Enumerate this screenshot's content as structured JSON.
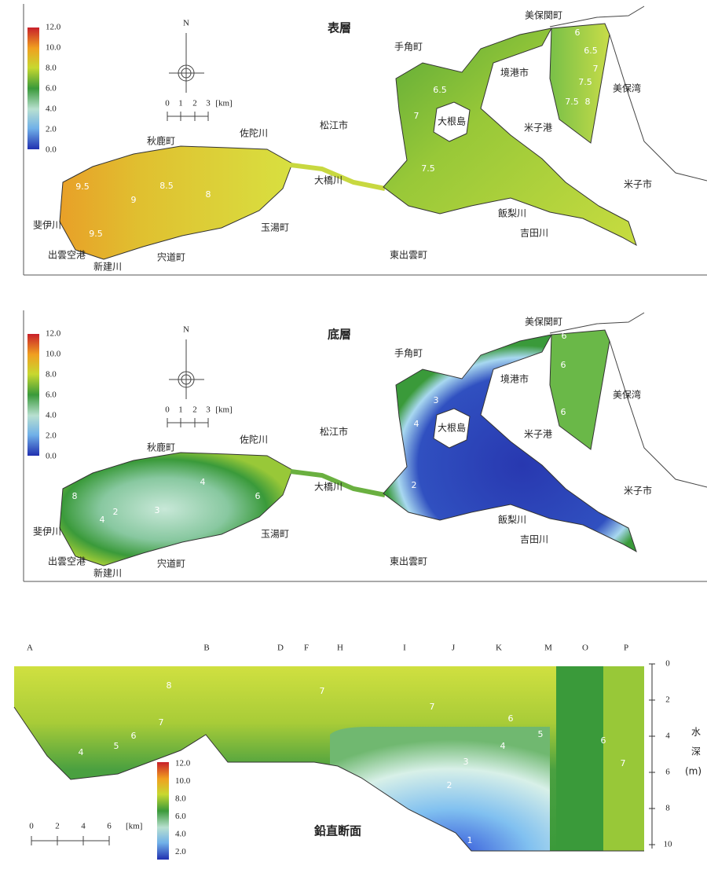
{
  "panels": [
    {
      "title": "表層",
      "colorbar_ticks": [
        "12.0",
        "10.0",
        "8.0",
        "6.0",
        "4.0",
        "2.0",
        "0.0"
      ],
      "north": "N",
      "scale_labels": [
        "0",
        "1",
        "2",
        "3",
        "[km]"
      ],
      "places": [
        "美保関町",
        "手角町",
        "境港市",
        "美保湾",
        "大根島",
        "米子港",
        "松江市",
        "秋鹿町",
        "佐陀川",
        "大橋川",
        "米子市",
        "斐伊川",
        "出雲空港",
        "新建川",
        "宍道町",
        "玉湯町",
        "東出雲町",
        "飯梨川",
        "吉田川"
      ],
      "contours": [
        "9.5",
        "9",
        "8.5",
        "8",
        "9.5",
        "7",
        "6.5",
        "7.5",
        "6",
        "6.5",
        "7",
        "7.5",
        "7.5",
        "8"
      ]
    },
    {
      "title": "底層",
      "colorbar_ticks": [
        "12.0",
        "10.0",
        "8.0",
        "6.0",
        "4.0",
        "2.0",
        "0.0"
      ],
      "north": "N",
      "scale_labels": [
        "0",
        "1",
        "2",
        "3",
        "[km]"
      ],
      "places": [
        "美保関町",
        "手角町",
        "境港市",
        "美保湾",
        "大根島",
        "米子港",
        "松江市",
        "秋鹿町",
        "佐陀川",
        "大橋川",
        "米子市",
        "斐伊川",
        "出雲空港",
        "新建川",
        "宍道町",
        "玉湯町",
        "東出雲町",
        "飯梨川",
        "吉田川"
      ],
      "contours": [
        "8",
        "4",
        "2",
        "3",
        "4",
        "6",
        "3",
        "4",
        "2",
        "6",
        "6",
        "6"
      ]
    }
  ],
  "section": {
    "title": "鉛直断面",
    "stations": [
      "A",
      "B",
      "D",
      "F",
      "H",
      "I",
      "J",
      "K",
      "M",
      "O",
      "P"
    ],
    "depth_ticks": [
      "0",
      "2",
      "4",
      "6",
      "8",
      "10"
    ],
    "depth_label": [
      "水",
      "深",
      "(m)"
    ],
    "scale_labels": [
      "0",
      "2",
      "4",
      "6",
      "[km]"
    ],
    "colorbar_ticks": [
      "12.0",
      "10.0",
      "8.0",
      "6.0",
      "4.0",
      "2.0"
    ],
    "contours": [
      "8",
      "7",
      "6",
      "5",
      "4",
      "7",
      "7",
      "6",
      "5",
      "4",
      "3",
      "2",
      "1",
      "6",
      "7"
    ]
  }
}
